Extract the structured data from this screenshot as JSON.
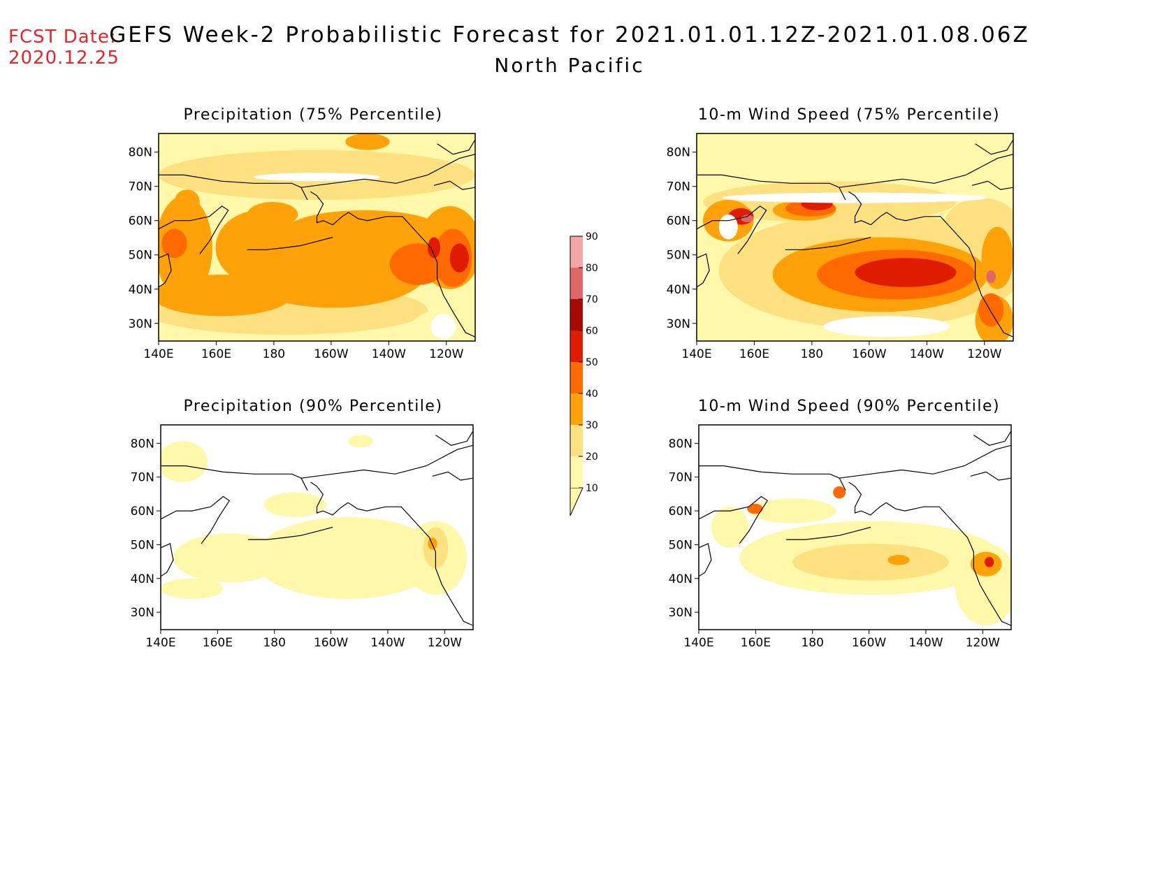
{
  "header": {
    "fcst_label": "FCST Date:",
    "fcst_date": "2020.12.25",
    "title": "GEFS Week-2 Probabilistic Forecast for 2021.01.01.12Z-2021.01.08.06Z",
    "subtitle": "North Pacific"
  },
  "map_extent": {
    "lon_range": [
      "140E",
      "110W"
    ],
    "lat_range": [
      "25N",
      "85N"
    ]
  },
  "lon_ticks": [
    "140E",
    "160E",
    "180",
    "160W",
    "140W",
    "120W"
  ],
  "lat_ticks": [
    "80N",
    "70N",
    "60N",
    "50N",
    "40N",
    "30N"
  ],
  "panels": [
    {
      "id": "precip75",
      "title": "Precipitation (75% Percentile)"
    },
    {
      "id": "wind75",
      "title": "10-m Wind Speed (75% Percentile)"
    },
    {
      "id": "precip90",
      "title": "Precipitation (90% Percentile)"
    },
    {
      "id": "wind90",
      "title": "10-m Wind Speed (90% Percentile)"
    }
  ],
  "colorbar": {
    "levels": [
      "10",
      "20",
      "30",
      "40",
      "50",
      "60",
      "70",
      "80",
      "90"
    ],
    "colors": {
      "10-20": "#fff7aa",
      "20-30": "#fde181",
      "30-40": "#ffa20a",
      "40-50": "#ff6a00",
      "50-60": "#e01c00",
      "60-70": "#a50b00",
      "70-80": "#df6767",
      "80-90": "#f4a6a6",
      "90-100": "#ffe6e6"
    }
  }
}
